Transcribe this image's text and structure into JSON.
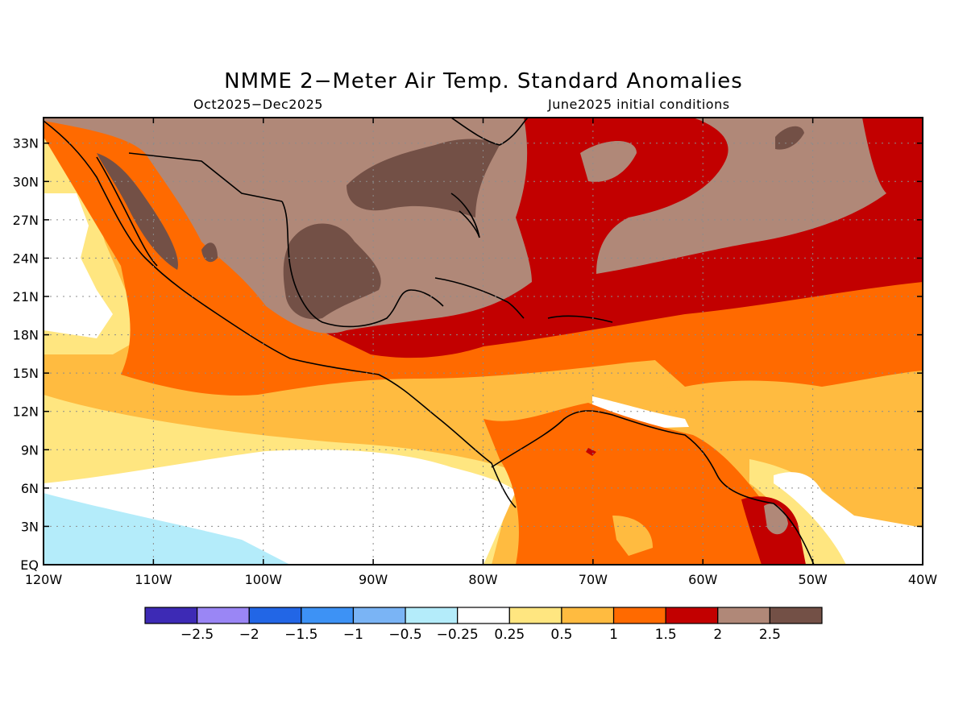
{
  "title": "NMME 2−Meter Air Temp. Standard Anomalies",
  "period": "Oct2025−Dec2025",
  "init": "June2025 initial conditions",
  "lat_labels": [
    "33N",
    "30N",
    "27N",
    "24N",
    "21N",
    "18N",
    "15N",
    "12N",
    "9N",
    "6N",
    "3N",
    "EQ"
  ],
  "lat_values": [
    33,
    30,
    27,
    24,
    21,
    18,
    15,
    12,
    9,
    6,
    3,
    0
  ],
  "lon_labels": [
    "120W",
    "110W",
    "100W",
    "90W",
    "80W",
    "70W",
    "60W",
    "50W",
    "40W"
  ],
  "lon_values": [
    -120,
    -110,
    -100,
    -90,
    -80,
    -70,
    -60,
    -50,
    -40
  ],
  "colorbar": {
    "colors": [
      "#3d2ab5",
      "#9a86f5",
      "#2266e6",
      "#3d92f5",
      "#7ab4f5",
      "#b4ecfa",
      "#ffffff",
      "#ffe680",
      "#ffbb40",
      "#ff6a00",
      "#c20000",
      "#b08878",
      "#735046"
    ],
    "labels": [
      "−2.5",
      "−2",
      "−1.5",
      "−1",
      "−0.5",
      "−0.25",
      "0.25",
      "0.5",
      "1",
      "1.5",
      "2",
      "2.5"
    ]
  },
  "layer_colors": {
    "lightblue": "#b4ecfa",
    "white": "#ffffff",
    "yellow": "#ffe680",
    "lightorange": "#ffbb40",
    "orange": "#ff6a00",
    "red": "#c20000",
    "lightbrown": "#b08878",
    "darkbrown": "#735046"
  }
}
